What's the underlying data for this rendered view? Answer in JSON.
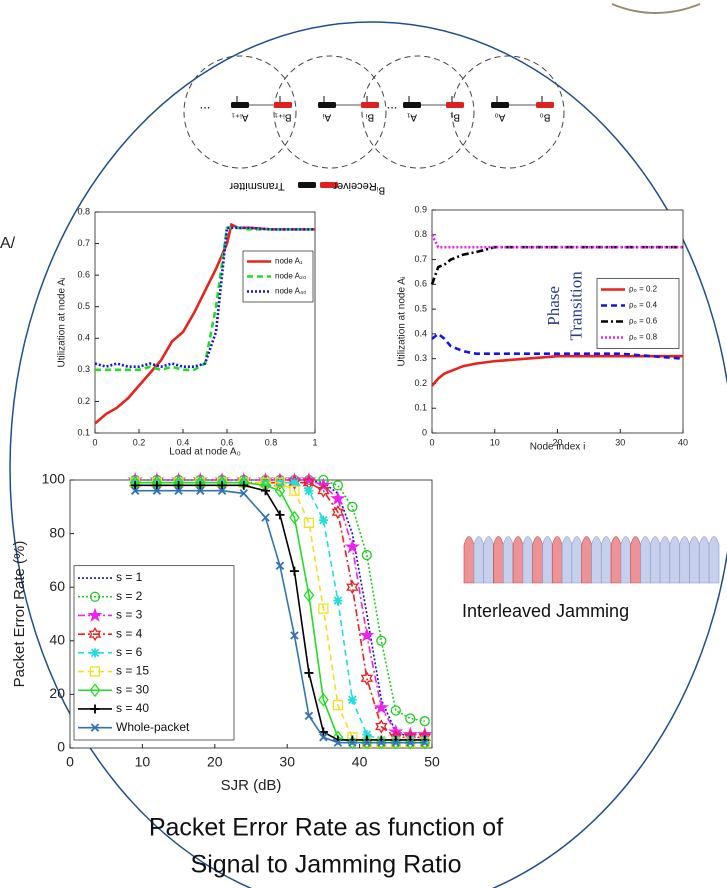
{
  "edge_fragment": "A/",
  "diagram": {
    "nodes": [
      {
        "label": "...",
        "kind": "gap"
      },
      {
        "label": "Aᵢ₊₁",
        "kind": "transmitter"
      },
      {
        "label": "Bᵢ₊₁",
        "kind": "receiver"
      },
      {
        "label": "Aᵢ",
        "kind": "transmitter"
      },
      {
        "label": "Bᵢ",
        "kind": "receiver"
      },
      {
        "label": "...",
        "kind": "gap"
      },
      {
        "label": "A₁",
        "kind": "transmitter"
      },
      {
        "label": "B₁",
        "kind": "receiver"
      },
      {
        "label": "A₀",
        "kind": "transmitter"
      },
      {
        "label": "B₀",
        "kind": "receiver"
      }
    ],
    "legend": {
      "transmitter": "Transmitter",
      "receiver": "Receiver",
      "receiver_node": "Bᵢ"
    }
  },
  "chart_data": [
    {
      "type": "line",
      "xlabel": "Load at node A₀",
      "ylabel": "Utilization at node Aᵢ",
      "x": [
        0,
        0.05,
        0.1,
        0.15,
        0.2,
        0.25,
        0.3,
        0.35,
        0.4,
        0.45,
        0.5,
        0.55,
        0.6,
        0.62,
        0.65,
        0.7,
        0.8,
        0.9,
        1.0
      ],
      "xlim": [
        0,
        1
      ],
      "xticks": [
        0,
        0.2,
        0.4,
        0.6,
        0.8,
        1
      ],
      "ylim": [
        0.1,
        0.8
      ],
      "yticks": [
        0.1,
        0.2,
        0.3,
        0.4,
        0.5,
        0.6,
        0.7,
        0.8
      ],
      "legend": "upper right",
      "series": [
        {
          "name": "node A₁",
          "color": "#e8221c",
          "dash": "solid",
          "values": [
            0.13,
            0.16,
            0.18,
            0.21,
            0.25,
            0.29,
            0.33,
            0.39,
            0.42,
            0.48,
            0.55,
            0.62,
            0.7,
            0.76,
            0.75,
            0.75,
            0.745,
            0.745,
            0.745
          ]
        },
        {
          "name": "node A₂₀",
          "color": "#22dd22",
          "dash": "dashed",
          "values": [
            0.3,
            0.3,
            0.3,
            0.3,
            0.3,
            0.31,
            0.3,
            0.31,
            0.3,
            0.3,
            0.32,
            0.5,
            0.75,
            0.75,
            0.75,
            0.745,
            0.745,
            0.745,
            0.745
          ]
        },
        {
          "name": "node A₄₀",
          "color": "#1414e6",
          "dash": "dotted",
          "values": [
            0.32,
            0.31,
            0.32,
            0.31,
            0.31,
            0.32,
            0.31,
            0.32,
            0.31,
            0.31,
            0.32,
            0.42,
            0.75,
            0.75,
            0.75,
            0.75,
            0.745,
            0.745,
            0.745
          ]
        }
      ]
    },
    {
      "type": "line",
      "xlabel": "Node index i",
      "ylabel": "Utilization at node Aᵢ",
      "annotation": [
        "Phase",
        "Transition"
      ],
      "x": [
        0,
        1,
        2,
        3,
        5,
        7,
        10,
        15,
        20,
        25,
        30,
        35,
        40
      ],
      "xlim": [
        0,
        40
      ],
      "xticks": [
        0,
        10,
        20,
        30,
        40
      ],
      "ylim": [
        0,
        0.9
      ],
      "yticks": [
        0,
        0.1,
        0.2,
        0.3,
        0.4,
        0.5,
        0.6,
        0.7,
        0.8,
        0.9
      ],
      "legend": "center right",
      "series": [
        {
          "name": "ρ₀ = 0.2",
          "color": "#e8221c",
          "dash": "solid",
          "values": [
            0.19,
            0.22,
            0.24,
            0.25,
            0.27,
            0.28,
            0.29,
            0.3,
            0.31,
            0.31,
            0.31,
            0.31,
            0.31
          ]
        },
        {
          "name": "ρ₀ = 0.4",
          "color": "#1414e6",
          "dash": "dashed",
          "values": [
            0.38,
            0.4,
            0.38,
            0.35,
            0.33,
            0.32,
            0.32,
            0.32,
            0.32,
            0.32,
            0.32,
            0.31,
            0.3
          ]
        },
        {
          "name": "ρ₀ = 0.6",
          "color": "#000000",
          "dash": "dashdot",
          "values": [
            0.6,
            0.67,
            0.68,
            0.7,
            0.72,
            0.73,
            0.75,
            0.75,
            0.75,
            0.75,
            0.75,
            0.75,
            0.75
          ]
        },
        {
          "name": "ρ₀ = 0.8",
          "color": "#ee22ee",
          "dash": "dotted",
          "values": [
            0.8,
            0.75,
            0.75,
            0.75,
            0.75,
            0.75,
            0.75,
            0.75,
            0.75,
            0.75,
            0.75,
            0.75,
            0.75
          ]
        }
      ]
    },
    {
      "type": "line",
      "xlabel": "SJR (dB)",
      "ylabel": "Packet Error Rate (%)",
      "x": [
        9,
        12,
        15,
        18,
        21,
        24,
        27,
        29,
        31,
        33,
        35,
        37,
        39,
        41,
        43,
        45,
        47,
        49
      ],
      "xlim": [
        0,
        50
      ],
      "xticks": [
        0,
        10,
        20,
        30,
        40,
        50
      ],
      "ylim": [
        0,
        100
      ],
      "yticks": [
        0,
        20,
        40,
        60,
        80,
        100
      ],
      "legend": "lower left",
      "series": [
        {
          "name": "s = 1",
          "color": "#1010cc",
          "dash": "dotted",
          "marker": "none",
          "values": [
            100,
            100,
            100,
            100,
            100,
            100,
            100,
            100,
            100,
            100,
            99,
            95,
            80,
            50,
            18,
            6,
            4,
            4
          ]
        },
        {
          "name": "s = 2",
          "color": "#22cc22",
          "dash": "dotted",
          "marker": "circle",
          "values": [
            100,
            100,
            100,
            100,
            100,
            100,
            100,
            100,
            100,
            100,
            100,
            98,
            90,
            72,
            40,
            14,
            11,
            10
          ]
        },
        {
          "name": "s = 3",
          "color": "#ee22ee",
          "dash": "dashdot",
          "marker": "star",
          "values": [
            100,
            100,
            100,
            100,
            100,
            100,
            100,
            100,
            100,
            100,
            98,
            93,
            75,
            42,
            15,
            6,
            5,
            5
          ]
        },
        {
          "name": "s = 4",
          "color": "#e8221c",
          "dash": "dashdot",
          "marker": "hexagram",
          "values": [
            99,
            99,
            99,
            99,
            99,
            99,
            99,
            99,
            99,
            99,
            96,
            88,
            60,
            26,
            8,
            4,
            4,
            4
          ]
        },
        {
          "name": "s = 6",
          "color": "#22dddd",
          "dash": "dashed",
          "marker": "asterisk",
          "values": [
            99,
            99,
            99,
            99,
            99,
            99,
            99,
            99,
            99,
            96,
            85,
            55,
            18,
            5,
            3,
            3,
            3,
            3
          ]
        },
        {
          "name": "s = 15",
          "color": "#f2e020",
          "dash": "dashed",
          "marker": "square",
          "values": [
            99,
            99,
            99,
            99,
            99,
            99,
            99,
            99,
            96,
            84,
            52,
            16,
            4,
            2,
            2,
            2,
            2,
            2
          ]
        },
        {
          "name": "s = 30",
          "color": "#22dd22",
          "dash": "solid",
          "marker": "diamond",
          "values": [
            99,
            99,
            99,
            99,
            99,
            99,
            98,
            96,
            86,
            57,
            18,
            4,
            2,
            2,
            2,
            2,
            2,
            2
          ]
        },
        {
          "name": "s = 40",
          "color": "#000000",
          "dash": "solid",
          "marker": "plus",
          "values": [
            98,
            98,
            98,
            98,
            98,
            98,
            96,
            87,
            66,
            28,
            6,
            3,
            3,
            3,
            3,
            3,
            3,
            3
          ]
        },
        {
          "name": "Whole-packet",
          "color": "#3174b4",
          "dash": "solid",
          "marker": "x",
          "values": [
            96,
            96,
            96,
            96,
            96,
            95,
            86,
            68,
            42,
            12,
            4,
            2,
            2,
            2,
            2,
            2,
            2,
            2
          ]
        }
      ]
    }
  ],
  "jamming_caption": "Interleaved Jamming",
  "caption": [
    "Packet Error Rate as function of",
    "Signal to Jamming Ratio"
  ]
}
